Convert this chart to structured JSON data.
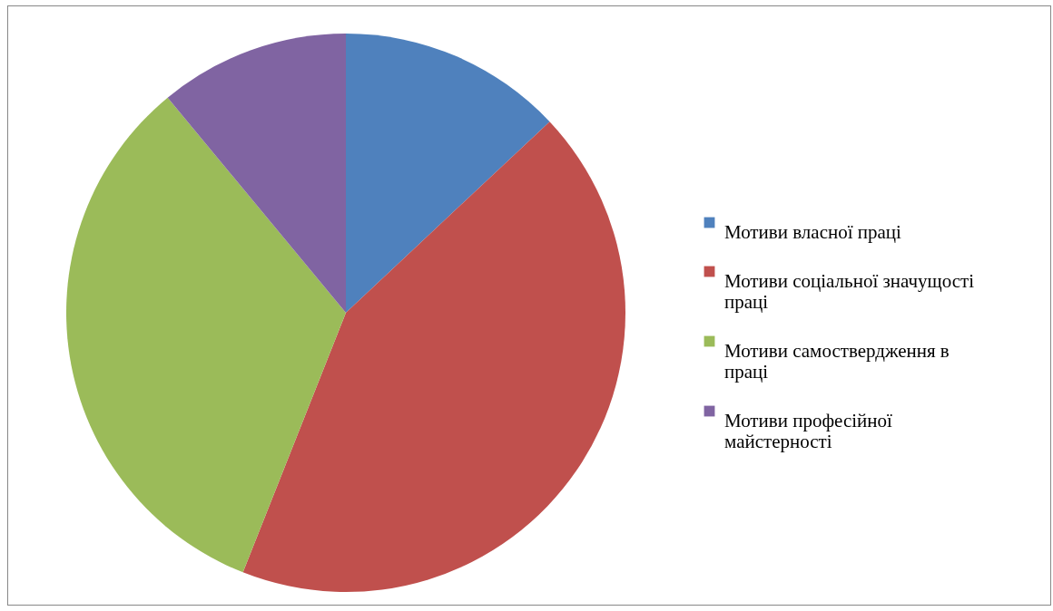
{
  "chart_data": {
    "type": "pie",
    "categories": [
      "Мотиви власної праці",
      "Мотиви соціальної значущості праці",
      "Мотиви самоствердження в праці",
      "Мотиви професійної майстерності"
    ],
    "values": [
      13,
      43,
      33,
      11
    ],
    "colors": [
      "#4f81bd",
      "#c0504d",
      "#9bbb59",
      "#8064a2"
    ],
    "legend": "right"
  }
}
